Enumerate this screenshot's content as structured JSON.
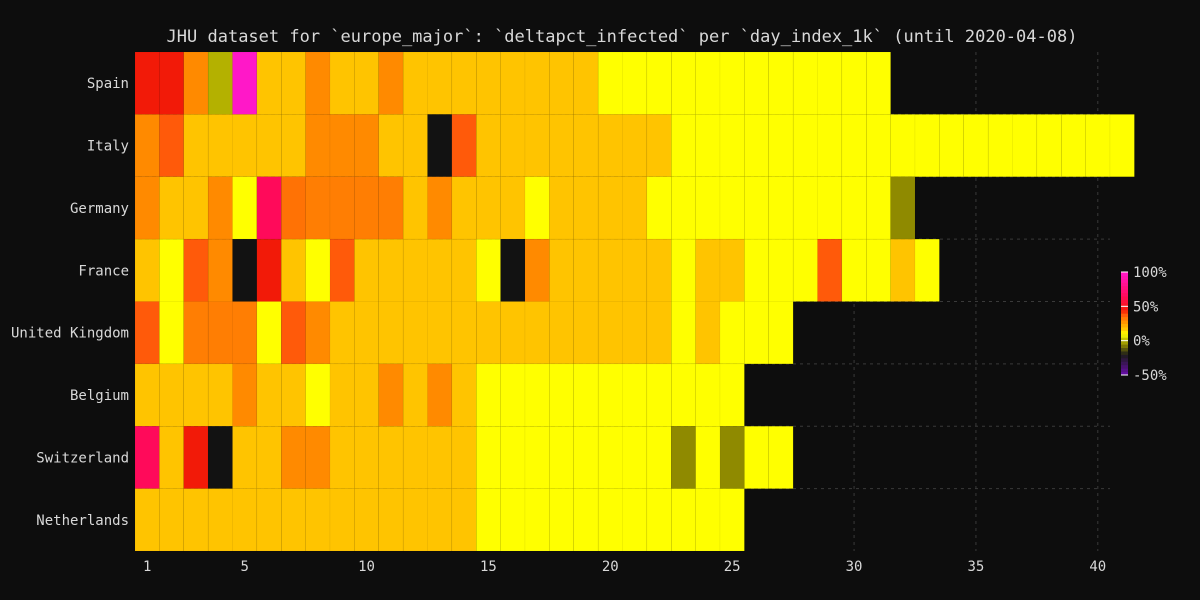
{
  "chart_data": {
    "type": "heatmap",
    "title": "JHU dataset for `europe_major`: `deltapct_infected` per `day_index_1k` (until 2020-04-08)",
    "xlabel": "",
    "ylabel": "",
    "x_ticks": [
      "1",
      "5",
      "10",
      "15",
      "20",
      "25",
      "30",
      "35",
      "40"
    ],
    "x_range": [
      0.5,
      40.5
    ],
    "rows": [
      {
        "name": "Spain",
        "values": [
          45,
          45,
          30,
          0,
          100,
          18,
          18,
          30,
          18,
          18,
          30,
          18,
          18,
          18,
          18,
          18,
          18,
          18,
          18,
          10,
          10,
          10,
          10,
          10,
          10,
          10,
          10,
          10,
          10,
          10,
          10
        ]
      },
      {
        "name": "Italy",
        "values": [
          30,
          38,
          18,
          18,
          18,
          18,
          18,
          30,
          30,
          30,
          18,
          18,
          -99,
          38,
          18,
          18,
          18,
          18,
          18,
          18,
          18,
          18,
          10,
          10,
          10,
          10,
          10,
          10,
          10,
          10,
          10,
          10,
          10,
          10,
          10,
          10,
          10,
          10,
          10,
          10,
          10
        ]
      },
      {
        "name": "Germany",
        "values": [
          30,
          18,
          18,
          30,
          10,
          65,
          34,
          32,
          32,
          32,
          32,
          18,
          30,
          18,
          18,
          18,
          10,
          18,
          18,
          18,
          18,
          10,
          10,
          10,
          10,
          10,
          10,
          10,
          10,
          10,
          10,
          -5
        ]
      },
      {
        "name": "France",
        "values": [
          18,
          10,
          38,
          30,
          -99,
          45,
          18,
          10,
          38,
          18,
          18,
          18,
          18,
          18,
          10,
          -99,
          30,
          18,
          18,
          18,
          18,
          18,
          10,
          18,
          18,
          10,
          10,
          10,
          38,
          10,
          10,
          18,
          10
        ]
      },
      {
        "name": "United Kingdom",
        "values": [
          38,
          10,
          32,
          32,
          32,
          10,
          38,
          30,
          18,
          18,
          18,
          18,
          18,
          18,
          18,
          18,
          18,
          18,
          18,
          18,
          18,
          18,
          10,
          18,
          10,
          10,
          10
        ]
      },
      {
        "name": "Belgium",
        "values": [
          18,
          18,
          18,
          18,
          30,
          18,
          18,
          10,
          18,
          18,
          30,
          18,
          30,
          18,
          10,
          10,
          10,
          10,
          10,
          10,
          10,
          10,
          10,
          10,
          10
        ]
      },
      {
        "name": "Switzerland",
        "values": [
          65,
          18,
          45,
          -99,
          18,
          18,
          30,
          30,
          18,
          18,
          18,
          18,
          18,
          18,
          10,
          10,
          10,
          10,
          10,
          10,
          10,
          10,
          -5,
          10,
          -5,
          10,
          10
        ]
      },
      {
        "name": "Netherlands",
        "values": [
          18,
          18,
          18,
          18,
          18,
          18,
          18,
          18,
          18,
          18,
          18,
          18,
          18,
          18,
          10,
          10,
          10,
          10,
          10,
          10,
          10,
          10,
          10,
          10,
          10
        ]
      }
    ],
    "colorbar": {
      "ticks": [
        "100%",
        "50%",
        "0%",
        "-50%"
      ],
      "range": [
        -50,
        100
      ],
      "stops": [
        {
          "v": -50,
          "color": "#6a0dad"
        },
        {
          "v": -20,
          "color": "#1a1a1a"
        },
        {
          "v": -5,
          "color": "#8f8a00"
        },
        {
          "v": 10,
          "color": "#ffff00"
        },
        {
          "v": 18,
          "color": "#ffc400"
        },
        {
          "v": 30,
          "color": "#ff8a00"
        },
        {
          "v": 38,
          "color": "#ff5a0a"
        },
        {
          "v": 45,
          "color": "#f21a08"
        },
        {
          "v": 65,
          "color": "#ff0a5a"
        },
        {
          "v": 100,
          "color": "#ff18c8"
        }
      ]
    },
    "missing_color": "#0d0d0d",
    "nan_color": "#121212",
    "grid": true,
    "legend_position": "right"
  }
}
